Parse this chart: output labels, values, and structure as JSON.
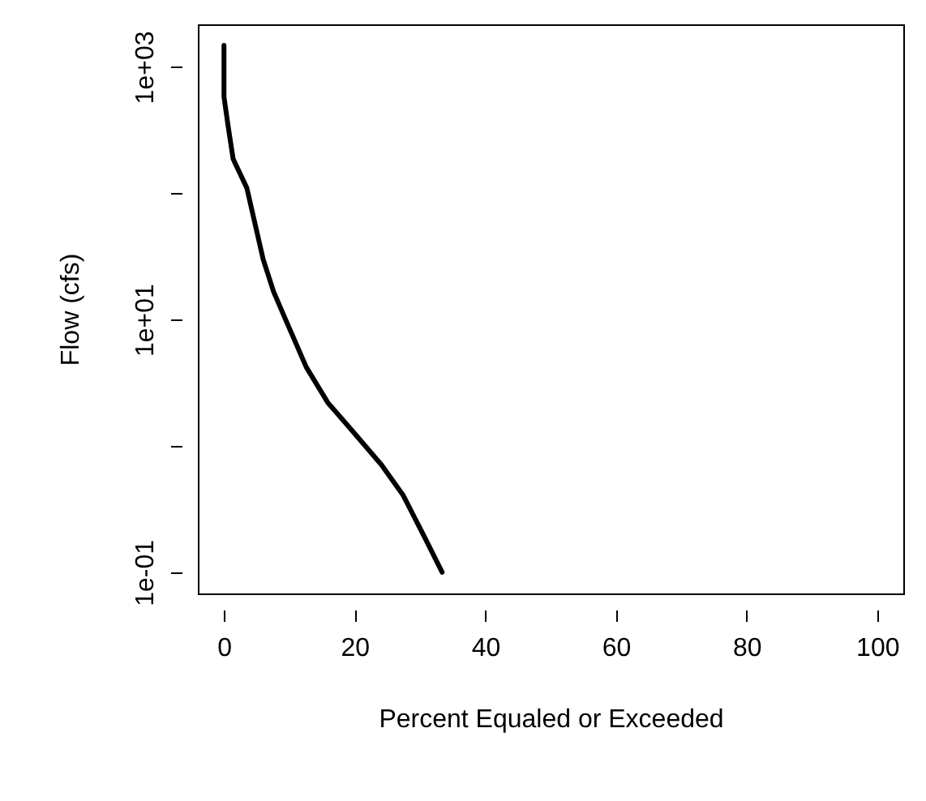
{
  "chart_data": {
    "type": "line",
    "xlabel": "Percent Equaled or Exceeded",
    "ylabel": "Flow (cfs)",
    "x": [
      0,
      0,
      0.58,
      1.4,
      3.5,
      6,
      7.6,
      9.7,
      12.6,
      15.9,
      19.2,
      24.1,
      27.4,
      30.7,
      33.4
    ],
    "series": [
      {
        "color": "#000000",
        "values": [
          1480,
          580,
          355,
          187,
          110,
          30,
          16.6,
          9.3,
          4.2,
          2.2,
          1.4,
          0.71,
          0.41,
          0.19,
          0.1
        ]
      }
    ],
    "log": "y",
    "xlim": [
      -4,
      104
    ],
    "xticks": [
      0,
      20,
      40,
      60,
      80,
      100
    ],
    "ylim": [
      0.068,
      2170
    ],
    "yticks": [
      {
        "value": 0.1,
        "label": "1e-01"
      },
      {
        "value": 1,
        "label": null
      },
      {
        "value": 10,
        "label": "1e+01"
      },
      {
        "value": 100,
        "label": null
      },
      {
        "value": 1000,
        "label": "1e+03"
      }
    ],
    "grid": false,
    "marker": "none",
    "line_style": "solid"
  }
}
